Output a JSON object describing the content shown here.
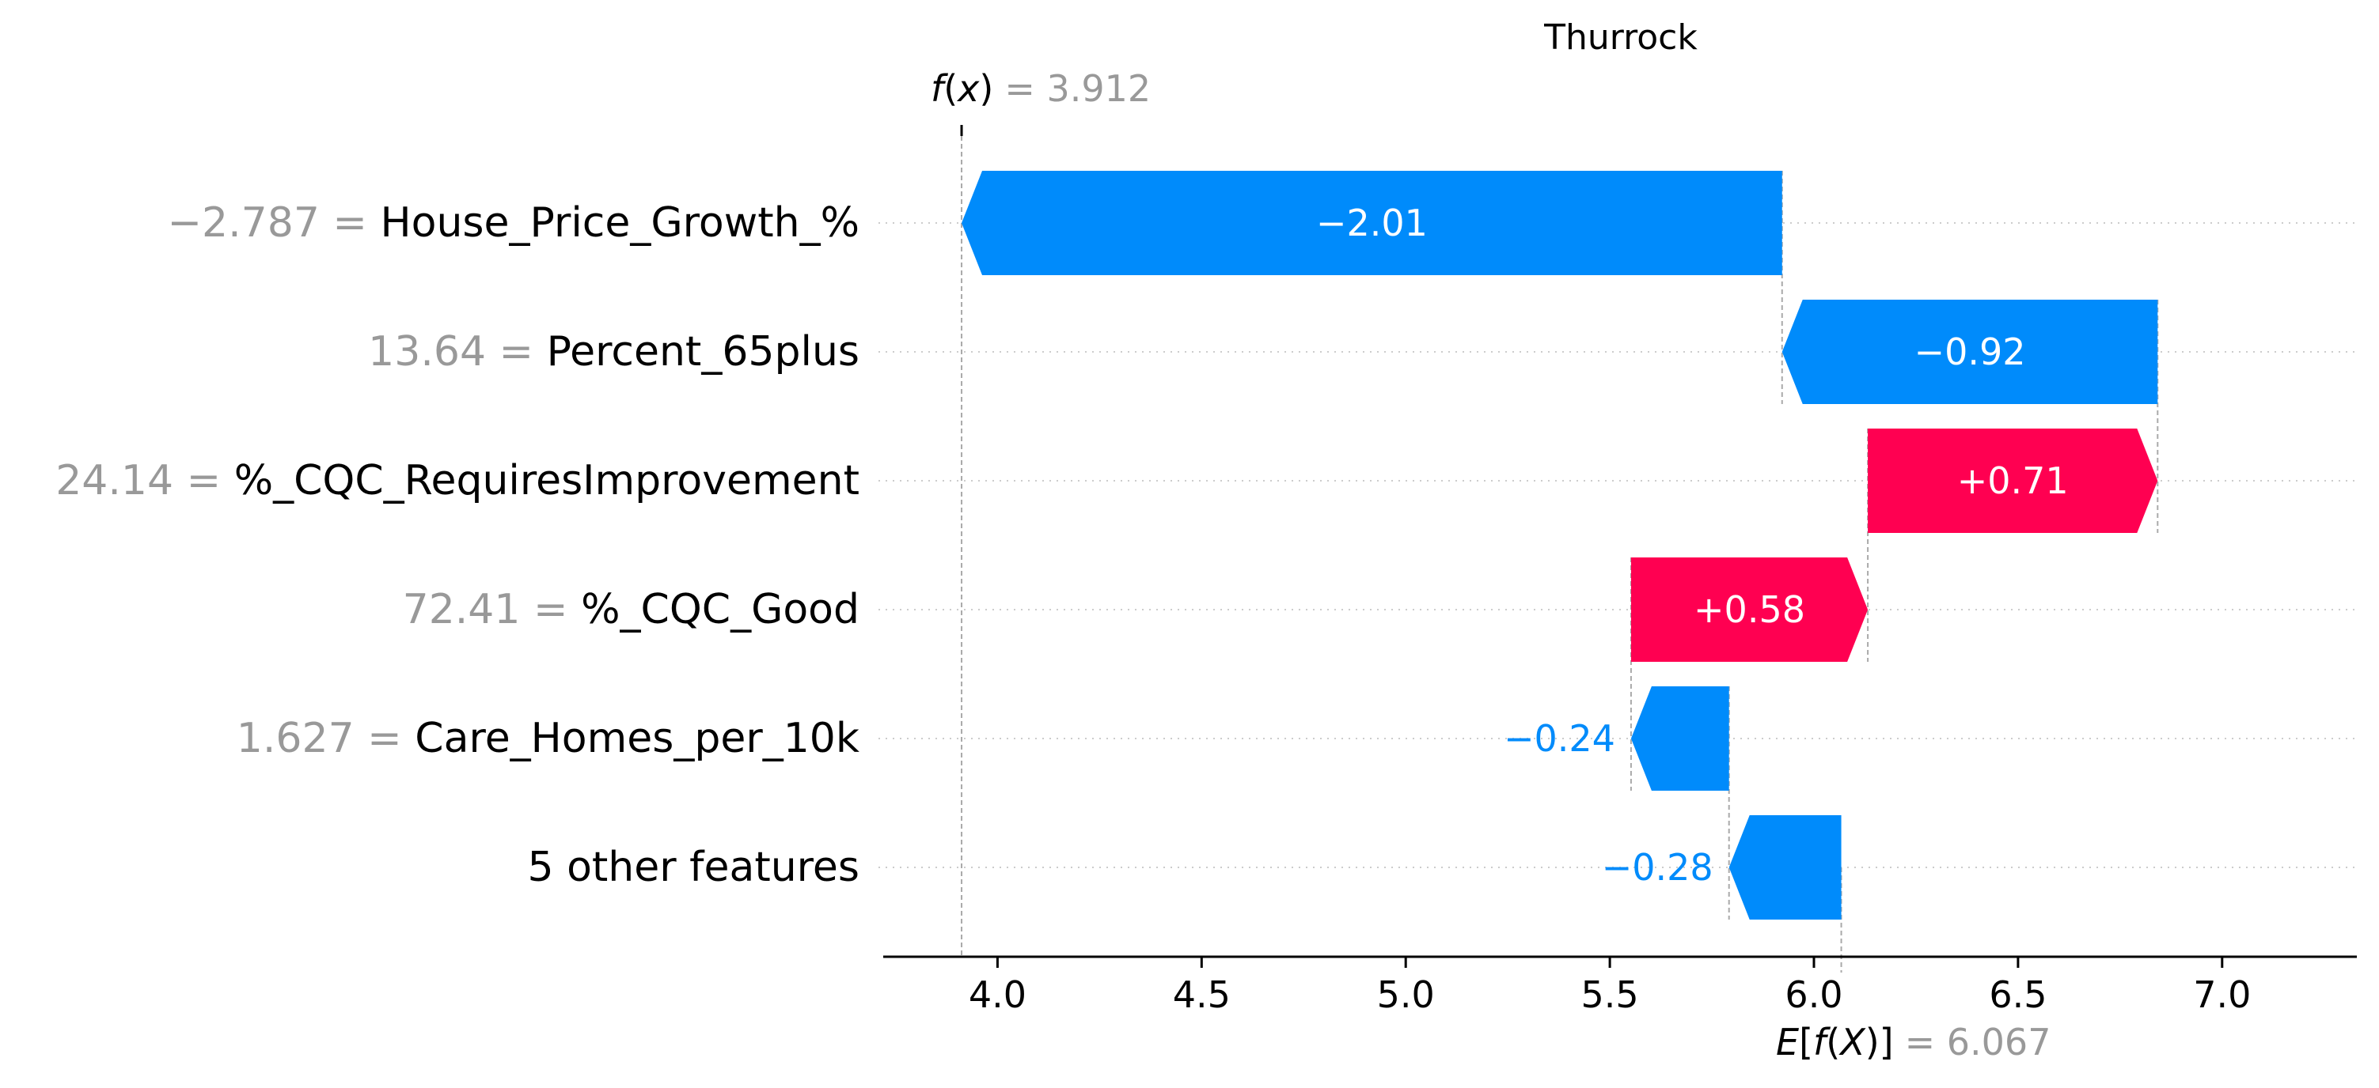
{
  "chart_data": {
    "type": "waterfall",
    "title": "Thurrock",
    "fx": {
      "prefix": "f",
      "paren_open": "(",
      "var": "x",
      "paren_close": ")",
      "eq_value": "= 3.912",
      "value": 3.912
    },
    "ex": {
      "prefix": "E",
      "bracket_open": "[",
      "fn": "f",
      "paren_open": "(",
      "var": "X",
      "paren_close": ")",
      "bracket_close": "]",
      "eq_value": "= 6.067",
      "value": 6.067
    },
    "xlim": [
      3.72,
      7.33
    ],
    "xticks": [
      4.0,
      4.5,
      5.0,
      5.5,
      6.0,
      6.5,
      7.0
    ],
    "xtick_labels": [
      "4.0",
      "4.5",
      "5.0",
      "5.5",
      "6.0",
      "6.5",
      "7.0"
    ],
    "colors": {
      "positive": "#ff0051",
      "negative": "#008bfb",
      "gray": "#999999",
      "axis": "#000000"
    },
    "features": [
      {
        "value_label": "−2.787 = ",
        "name": "House_Price_Growth_%",
        "shap": -2.01,
        "label": "−2.01",
        "start": 5.922,
        "end": 3.912
      },
      {
        "value_label": "13.64 = ",
        "name": "Percent_65plus",
        "shap": -0.92,
        "label": "−0.92",
        "start": 6.842,
        "end": 5.922
      },
      {
        "value_label": "24.14 = ",
        "name": "%_CQC_RequiresImprovement",
        "shap": 0.71,
        "label": "+0.71",
        "start": 6.132,
        "end": 6.842
      },
      {
        "value_label": "72.41 = ",
        "name": "%_CQC_Good",
        "shap": 0.58,
        "label": "+0.58",
        "start": 5.552,
        "end": 6.132
      },
      {
        "value_label": "1.627 = ",
        "name": "Care_Homes_per_10k",
        "shap": -0.24,
        "label": "−0.24",
        "start": 5.792,
        "end": 5.552
      },
      {
        "value_label": "",
        "name": "5 other features",
        "shap": -0.28,
        "label": "−0.28",
        "start": 6.067,
        "end": 5.792
      }
    ]
  }
}
